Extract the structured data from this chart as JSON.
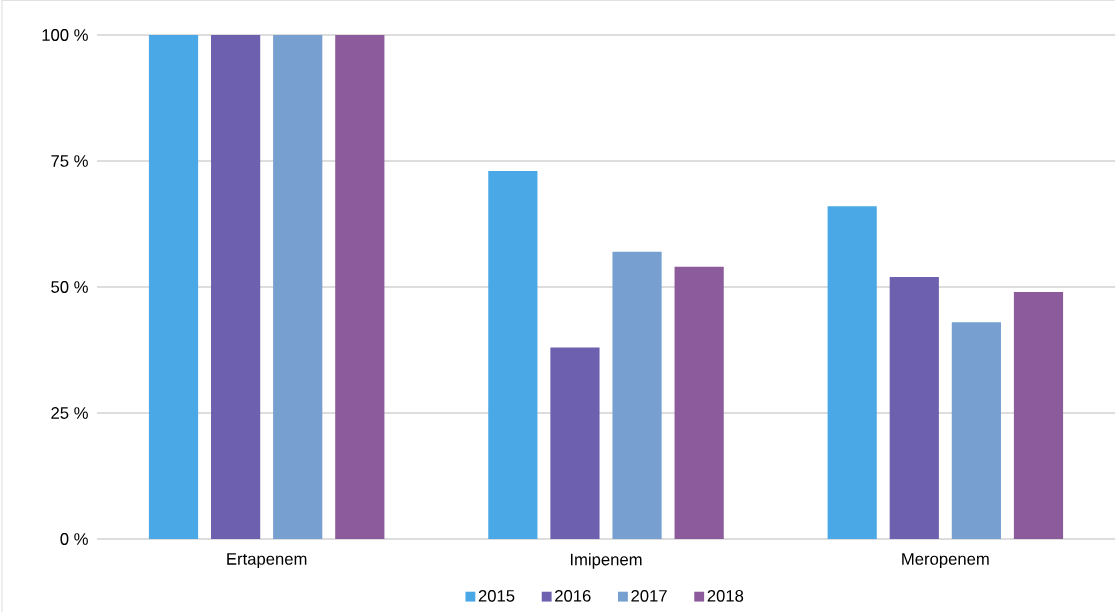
{
  "chart_data": {
    "type": "bar",
    "categories": [
      "Ertapenem",
      "Imipenem",
      "Meropenem"
    ],
    "series": [
      {
        "name": "2015",
        "color": "#4ba8e6",
        "values": [
          100,
          73,
          66
        ]
      },
      {
        "name": "2016",
        "color": "#6d60af",
        "values": [
          100,
          38,
          52
        ]
      },
      {
        "name": "2017",
        "color": "#779fd0",
        "values": [
          100,
          57,
          43
        ]
      },
      {
        "name": "2018",
        "color": "#8b5b9b",
        "values": [
          100,
          54,
          49
        ]
      }
    ],
    "ylim": [
      0,
      100
    ],
    "yticks": [
      {
        "value": 0,
        "label": "0 %"
      },
      {
        "value": 25,
        "label": "25 %"
      },
      {
        "value": 50,
        "label": "50 %"
      },
      {
        "value": 75,
        "label": "75 %"
      },
      {
        "value": 100,
        "label": "100 %"
      }
    ],
    "grid": "y",
    "legend": "bottom"
  }
}
